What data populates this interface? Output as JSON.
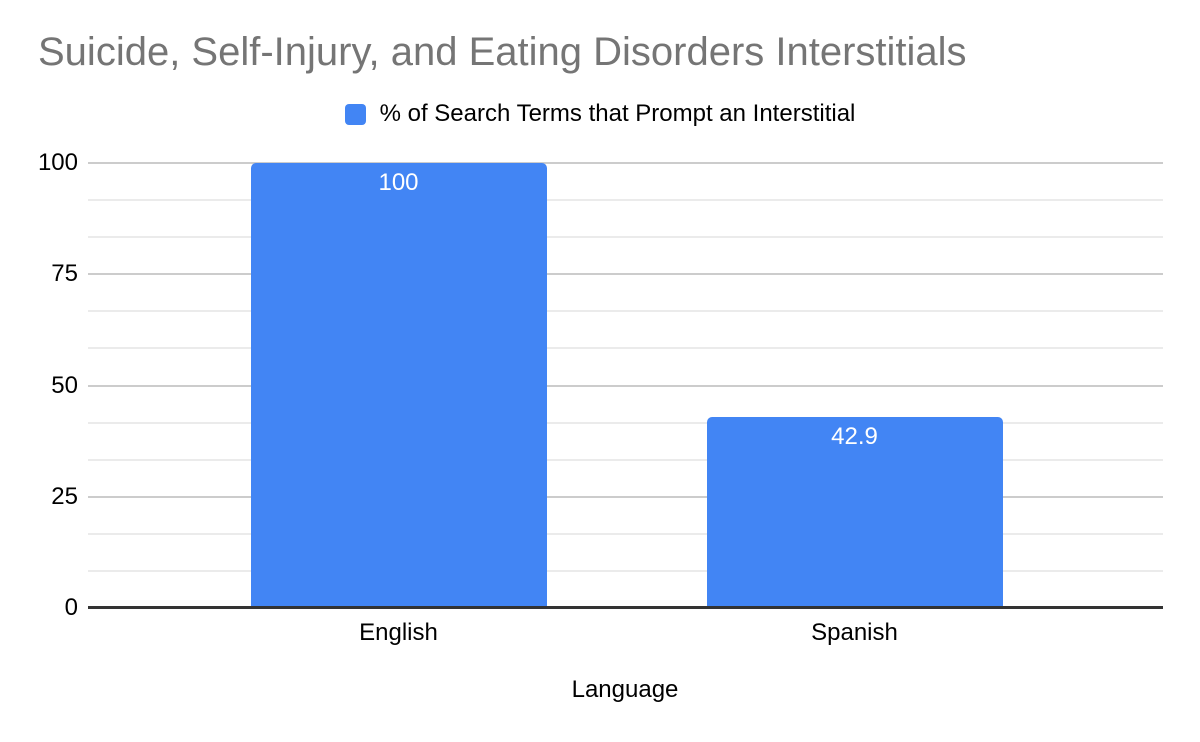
{
  "title": "Suicide, Self-Injury, and Eating Disorders Interstitials",
  "legend": {
    "label": "% of Search Terms that Prompt an Interstitial",
    "swatch_icon": "legend-swatch-square"
  },
  "chart_data": {
    "type": "bar",
    "title": "Suicide, Self-Injury, and Eating Disorders Interstitials",
    "series": [
      {
        "name": "% of Search Terms that Prompt an Interstitial",
        "values": [
          100,
          42.9
        ]
      }
    ],
    "categories": [
      "English",
      "Spanish"
    ],
    "bar_labels": [
      "100",
      "42.9"
    ],
    "xlabel": "Language",
    "ylabel": "",
    "ylim": [
      0,
      100
    ],
    "yticks": [
      0,
      25,
      50,
      75,
      100
    ],
    "ytick_labels": [
      "0",
      "25",
      "50",
      "75",
      "100"
    ],
    "minor_gridlines_per_interval": 2,
    "grid": true,
    "legend_position": "top"
  },
  "colors": {
    "bar": "#4285f4",
    "title_text": "#757575",
    "axis_text": "#000000",
    "bar_label_text": "#ffffff",
    "axis_line": "#333333",
    "major_gridline": "#cccccc",
    "minor_gridline": "#ebebeb",
    "background": "#ffffff"
  }
}
